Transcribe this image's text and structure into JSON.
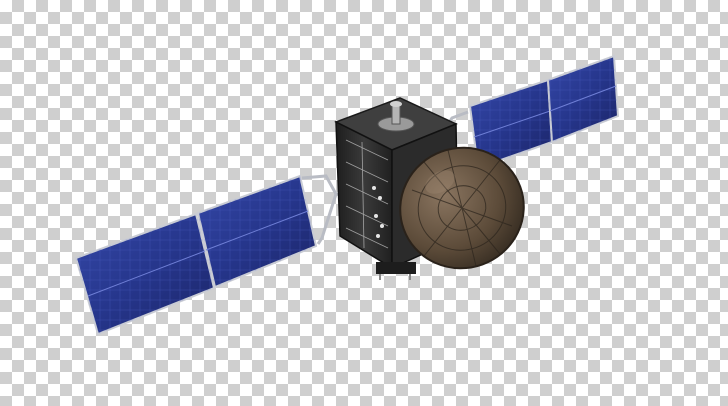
{
  "scene": {
    "subject": "satellite-illustration",
    "background": "transparency-checkerboard",
    "colors": {
      "checker_light": "#ffffff",
      "checker_dark": "#cfcfcf",
      "panel_blue": "#2b3a8f",
      "panel_blue_dark": "#1c2766",
      "panel_frame": "#c9ccd4",
      "body_dark": "#2a2a2a",
      "dish_brown": "#6b5a47",
      "dish_dark": "#3d3327"
    }
  }
}
